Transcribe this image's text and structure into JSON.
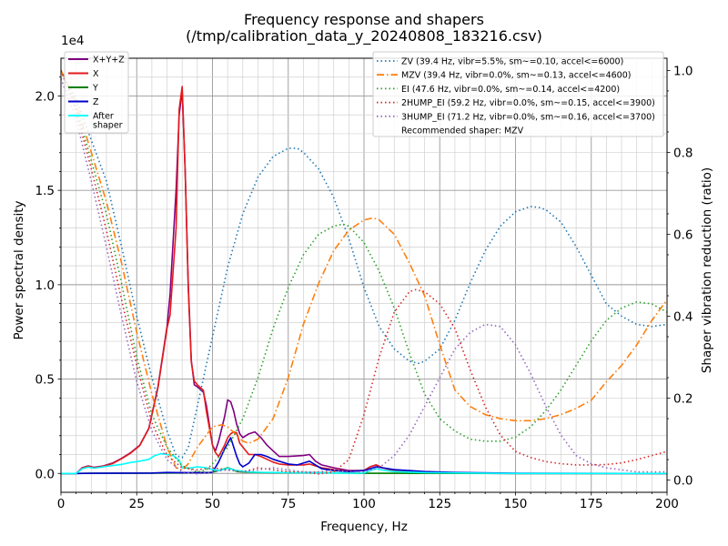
{
  "chart_data": {
    "type": "line",
    "title_line1": "Frequency response and shapers",
    "title_line2": "(/tmp/calibration_data_y_20240808_183216.csv)",
    "xlabel": "Frequency, Hz",
    "ylabel": "Power spectral density",
    "y2label": "Shaper vibration reduction (ratio)",
    "y_exponent_label": "1e4",
    "xlim": [
      0,
      200
    ],
    "ylim": [
      -1000,
      22000
    ],
    "y2lim": [
      -0.0298,
      1.0298
    ],
    "x_ticks": [
      0,
      25,
      50,
      75,
      100,
      125,
      150,
      175,
      200
    ],
    "y_ticks": [
      0,
      5000,
      10000,
      15000,
      20000
    ],
    "y_tick_labels": [
      "0.0",
      "0.5",
      "1.0",
      "1.5",
      "2.0"
    ],
    "y2_ticks": [
      0,
      0.2,
      0.4,
      0.6,
      0.8,
      1.0
    ],
    "y2_tick_labels": [
      "0.0",
      "0.2",
      "0.4",
      "0.6",
      "0.8",
      "1.0"
    ],
    "grid": true,
    "legend_left": "top-left",
    "legend_right": "top-right",
    "recommended_text": "Recommended shaper: MZV",
    "psd_series": [
      {
        "name": "X+Y+Z",
        "color": "#800080",
        "width": 1.6,
        "x": [
          0,
          5,
          7,
          9,
          11,
          14,
          17,
          20,
          23,
          26,
          29,
          32,
          35,
          36,
          38,
          39,
          40,
          41,
          42,
          43,
          44,
          45,
          47,
          48,
          50,
          51,
          52,
          54,
          55,
          56,
          57,
          58,
          59,
          60,
          62,
          64,
          66,
          68,
          70,
          72,
          75,
          80,
          82,
          84,
          86,
          90,
          95,
          100,
          102,
          104,
          106,
          110,
          120,
          130,
          140,
          150,
          175,
          200
        ],
        "y": [
          0,
          0,
          300,
          400,
          320,
          400,
          550,
          800,
          1100,
          1500,
          2400,
          4600,
          7800,
          9500,
          15000,
          19000,
          20300,
          16000,
          10000,
          6000,
          4700,
          4600,
          4300,
          3600,
          1500,
          1200,
          1700,
          3000,
          3900,
          3800,
          3300,
          2600,
          2100,
          1900,
          2100,
          2200,
          1900,
          1500,
          1200,
          900,
          900,
          950,
          1000,
          650,
          450,
          300,
          150,
          150,
          350,
          450,
          300,
          150,
          50,
          20,
          5,
          0,
          0,
          0
        ]
      },
      {
        "name": "X",
        "color": "#e41a1c",
        "width": 1.6,
        "x": [
          0,
          5,
          7,
          9,
          11,
          14,
          17,
          20,
          23,
          26,
          29,
          32,
          35,
          36,
          38,
          39,
          40,
          41,
          42,
          43,
          44,
          45,
          47,
          48,
          50,
          51,
          52,
          54,
          55,
          56,
          57,
          58,
          59,
          60,
          62,
          64,
          66,
          68,
          70,
          72,
          75,
          80,
          82,
          84,
          86,
          90,
          95,
          100,
          102,
          104,
          106,
          110,
          120,
          130,
          140,
          150,
          175,
          200
        ],
        "y": [
          0,
          0,
          280,
          380,
          300,
          380,
          520,
          780,
          1080,
          1480,
          2380,
          4550,
          7700,
          8400,
          13000,
          19300,
          20500,
          16000,
          9800,
          5900,
          4900,
          4700,
          4400,
          3300,
          1500,
          1100,
          900,
          1500,
          1900,
          2100,
          2200,
          2150,
          1600,
          1400,
          1000,
          1000,
          900,
          750,
          600,
          500,
          450,
          450,
          500,
          400,
          300,
          200,
          120,
          150,
          350,
          450,
          300,
          150,
          50,
          20,
          5,
          0,
          0,
          0
        ]
      },
      {
        "name": "Y",
        "color": "#008000",
        "width": 1.6,
        "x": [
          0,
          5,
          10,
          20,
          30,
          40,
          45,
          50,
          53,
          55,
          57,
          58,
          60,
          62,
          65,
          70,
          75,
          80,
          85,
          90,
          95,
          100,
          110,
          120,
          150,
          200
        ],
        "y": [
          0,
          0,
          10,
          10,
          15,
          30,
          50,
          60,
          200,
          300,
          200,
          100,
          80,
          60,
          50,
          40,
          35,
          40,
          40,
          30,
          20,
          10,
          10,
          5,
          0,
          0
        ]
      },
      {
        "name": "Z",
        "color": "#0000cd",
        "width": 1.6,
        "x": [
          0,
          5,
          10,
          20,
          30,
          35,
          40,
          45,
          48,
          50,
          52,
          54,
          55,
          56,
          57,
          58,
          59,
          60,
          62,
          64,
          66,
          68,
          70,
          72,
          75,
          78,
          80,
          82,
          84,
          86,
          90,
          95,
          100,
          102,
          104,
          106,
          110,
          120,
          130,
          150,
          200
        ],
        "y": [
          0,
          0,
          10,
          15,
          20,
          50,
          40,
          40,
          30,
          60,
          600,
          1300,
          1600,
          1900,
          1400,
          900,
          500,
          350,
          550,
          1000,
          1000,
          900,
          750,
          650,
          500,
          450,
          550,
          650,
          450,
          250,
          150,
          100,
          150,
          250,
          350,
          300,
          200,
          100,
          50,
          10,
          0
        ]
      },
      {
        "name": "After\nshaper",
        "color": "#00ffff",
        "width": 1.6,
        "x": [
          0,
          5,
          7,
          9,
          11,
          14,
          17,
          20,
          23,
          26,
          29,
          31,
          33,
          35,
          37,
          39,
          40,
          42,
          45,
          48,
          50,
          52,
          55,
          57,
          58,
          60,
          62,
          65,
          70,
          75,
          80,
          85,
          90,
          95,
          100,
          102,
          104,
          106,
          110,
          120,
          150,
          200
        ],
        "y": [
          0,
          0,
          250,
          330,
          280,
          350,
          420,
          480,
          580,
          650,
          750,
          950,
          1050,
          1000,
          950,
          700,
          300,
          280,
          350,
          300,
          200,
          150,
          280,
          200,
          150,
          120,
          80,
          60,
          50,
          40,
          30,
          25,
          20,
          15,
          20,
          150,
          250,
          180,
          100,
          40,
          0,
          0
        ]
      }
    ],
    "shaper_series": [
      {
        "name": "ZV (39.4 Hz, vibr=5.5%, sm~=0.10, accel<=6000)",
        "color": "#1f77b4",
        "dash": "dotted",
        "x": [
          0,
          5,
          10,
          15,
          20,
          25,
          30,
          35,
          38,
          40,
          42,
          45,
          50,
          55,
          60,
          65,
          70,
          75,
          78,
          80,
          85,
          90,
          95,
          100,
          105,
          110,
          115,
          118,
          120,
          125,
          130,
          135,
          140,
          145,
          150,
          155,
          158,
          160,
          165,
          170,
          175,
          180,
          185,
          190,
          195,
          200
        ],
        "y": [
          1.0,
          0.93,
          0.83,
          0.73,
          0.57,
          0.4,
          0.25,
          0.12,
          0.06,
          0.055,
          0.08,
          0.18,
          0.35,
          0.52,
          0.65,
          0.74,
          0.79,
          0.81,
          0.81,
          0.8,
          0.76,
          0.69,
          0.59,
          0.47,
          0.375,
          0.32,
          0.29,
          0.285,
          0.29,
          0.32,
          0.39,
          0.48,
          0.56,
          0.62,
          0.655,
          0.668,
          0.665,
          0.66,
          0.63,
          0.57,
          0.5,
          0.43,
          0.4,
          0.38,
          0.375,
          0.38
        ]
      },
      {
        "name": "MZV (39.4 Hz, vibr=0.0%, sm~=0.13, accel<=4600)",
        "color": "#ff7f0e",
        "dash": "dashdot",
        "x": [
          0,
          5,
          10,
          15,
          20,
          25,
          30,
          35,
          38,
          40,
          42,
          45,
          50,
          53,
          55,
          58,
          60,
          62,
          65,
          70,
          75,
          80,
          85,
          90,
          95,
          100,
          103,
          105,
          110,
          115,
          120,
          125,
          130,
          135,
          140,
          145,
          150,
          155,
          160,
          165,
          170,
          175,
          180,
          185,
          190,
          195,
          200
        ],
        "y": [
          1.0,
          0.92,
          0.8,
          0.68,
          0.53,
          0.36,
          0.21,
          0.08,
          0.03,
          0.025,
          0.04,
          0.08,
          0.13,
          0.135,
          0.13,
          0.11,
          0.095,
          0.09,
          0.1,
          0.15,
          0.25,
          0.38,
          0.48,
          0.56,
          0.61,
          0.635,
          0.64,
          0.635,
          0.6,
          0.53,
          0.45,
          0.33,
          0.22,
          0.18,
          0.16,
          0.15,
          0.145,
          0.145,
          0.15,
          0.16,
          0.175,
          0.195,
          0.24,
          0.28,
          0.33,
          0.39,
          0.44
        ]
      },
      {
        "name": "EI (47.6 Hz, vibr=0.0%, sm~=0.14, accel<=4200)",
        "color": "#2ca02c",
        "dash": "dotted",
        "x": [
          0,
          5,
          10,
          15,
          20,
          25,
          30,
          35,
          40,
          45,
          48,
          50,
          55,
          60,
          65,
          70,
          75,
          80,
          85,
          90,
          93,
          95,
          100,
          105,
          110,
          115,
          120,
          125,
          130,
          135,
          140,
          145,
          150,
          155,
          160,
          165,
          170,
          175,
          180,
          185,
          190,
          195,
          200
        ],
        "y": [
          1.0,
          0.91,
          0.78,
          0.65,
          0.48,
          0.3,
          0.16,
          0.08,
          0.035,
          0.02,
          0.025,
          0.04,
          0.08,
          0.15,
          0.25,
          0.37,
          0.47,
          0.55,
          0.6,
          0.62,
          0.625,
          0.62,
          0.58,
          0.51,
          0.42,
          0.31,
          0.21,
          0.15,
          0.12,
          0.1,
          0.095,
          0.095,
          0.105,
          0.13,
          0.17,
          0.22,
          0.28,
          0.34,
          0.39,
          0.42,
          0.435,
          0.43,
          0.41
        ]
      },
      {
        "name": "2HUMP_EI (59.2 Hz, vibr=0.0%, sm~=0.15, accel<=3900)",
        "color": "#d62728",
        "dash": "dotted",
        "x": [
          0,
          5,
          10,
          15,
          20,
          25,
          30,
          35,
          40,
          45,
          50,
          55,
          60,
          65,
          70,
          75,
          80,
          85,
          90,
          95,
          100,
          105,
          110,
          115,
          117,
          120,
          125,
          130,
          135,
          140,
          145,
          150,
          155,
          160,
          165,
          170,
          175,
          180,
          185,
          190,
          195,
          200
        ],
        "y": [
          1.0,
          0.9,
          0.76,
          0.61,
          0.44,
          0.28,
          0.14,
          0.06,
          0.03,
          0.025,
          0.03,
          0.025,
          0.02,
          0.03,
          0.025,
          0.02,
          0.02,
          0.015,
          0.02,
          0.05,
          0.16,
          0.3,
          0.41,
          0.46,
          0.465,
          0.46,
          0.43,
          0.37,
          0.27,
          0.18,
          0.11,
          0.07,
          0.055,
          0.045,
          0.04,
          0.037,
          0.037,
          0.038,
          0.042,
          0.05,
          0.06,
          0.07
        ]
      },
      {
        "name": "3HUMP_EI (71.2 Hz, vibr=0.0%, sm~=0.16, accel<=3700)",
        "color": "#9467bd",
        "dash": "dotted",
        "x": [
          0,
          5,
          10,
          15,
          20,
          25,
          30,
          35,
          40,
          45,
          50,
          55,
          60,
          65,
          70,
          75,
          80,
          85,
          90,
          95,
          100,
          105,
          110,
          115,
          120,
          125,
          130,
          135,
          140,
          145,
          150,
          155,
          160,
          165,
          170,
          175,
          180,
          185,
          190,
          195,
          200
        ],
        "y": [
          0.98,
          0.88,
          0.73,
          0.57,
          0.4,
          0.24,
          0.12,
          0.05,
          0.02,
          0.015,
          0.02,
          0.025,
          0.02,
          0.025,
          0.03,
          0.025,
          0.02,
          0.02,
          0.025,
          0.02,
          0.02,
          0.03,
          0.06,
          0.11,
          0.18,
          0.25,
          0.32,
          0.36,
          0.38,
          0.375,
          0.33,
          0.26,
          0.18,
          0.11,
          0.06,
          0.04,
          0.03,
          0.025,
          0.02,
          0.02,
          0.02
        ]
      }
    ]
  }
}
